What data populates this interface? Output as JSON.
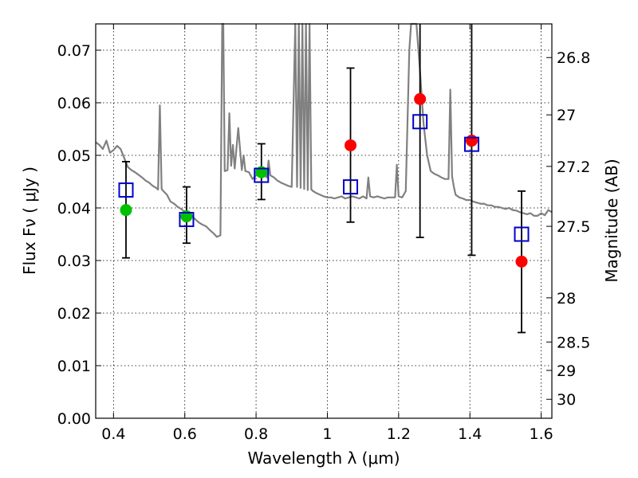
{
  "chart_data": {
    "type": "scatter",
    "xlabel": "Wavelength  λ (μm)",
    "ylabel": "Flux  Fν  ( μJy )",
    "ylabel_right": "Magnitude (AB)",
    "xlim": [
      0.35,
      1.63
    ],
    "ylim": [
      0.0,
      0.075
    ],
    "grid": true,
    "x_ticks": [
      0.4,
      0.6,
      0.8,
      1.0,
      1.2,
      1.4,
      1.6
    ],
    "x_tick_labels": [
      "0.4",
      "0.6",
      "0.8",
      "1",
      "1.2",
      "1.4",
      "1.6"
    ],
    "y_ticks": [
      0.0,
      0.01,
      0.02,
      0.03,
      0.04,
      0.05,
      0.06,
      0.07
    ],
    "y_tick_labels": [
      "0.00",
      "0.01",
      "0.02",
      "0.03",
      "0.04",
      "0.05",
      "0.06",
      "0.07"
    ],
    "right_ticks": [
      {
        "flux": 0.0686,
        "label": "26.8"
      },
      {
        "flux": 0.0577,
        "label": "27"
      },
      {
        "flux": 0.0479,
        "label": "27.2"
      },
      {
        "flux": 0.0365,
        "label": "27.5"
      },
      {
        "flux": 0.0229,
        "label": "28"
      },
      {
        "flux": 0.0145,
        "label": "28.5"
      },
      {
        "flux": 0.0091,
        "label": "29"
      },
      {
        "flux": 0.0036,
        "label": "30"
      }
    ],
    "series": [
      {
        "style": "spectrum",
        "color": "#808080",
        "x": [
          0.35,
          0.36,
          0.37,
          0.38,
          0.39,
          0.4,
          0.41,
          0.42,
          0.43,
          0.44,
          0.45,
          0.46,
          0.47,
          0.48,
          0.49,
          0.5,
          0.51,
          0.52,
          0.525,
          0.53,
          0.535,
          0.54,
          0.55,
          0.56,
          0.57,
          0.58,
          0.59,
          0.6,
          0.61,
          0.62,
          0.63,
          0.64,
          0.65,
          0.66,
          0.67,
          0.68,
          0.69,
          0.7,
          0.705,
          0.708,
          0.712,
          0.72,
          0.725,
          0.73,
          0.735,
          0.74,
          0.75,
          0.76,
          0.765,
          0.77,
          0.78,
          0.79,
          0.8,
          0.81,
          0.82,
          0.83,
          0.835,
          0.84,
          0.85,
          0.86,
          0.87,
          0.88,
          0.89,
          0.9,
          0.91,
          0.915,
          0.92,
          0.925,
          0.93,
          0.935,
          0.94,
          0.945,
          0.95,
          0.955,
          0.96,
          0.97,
          0.98,
          0.99,
          1.0,
          1.01,
          1.02,
          1.03,
          1.04,
          1.05,
          1.06,
          1.07,
          1.08,
          1.09,
          1.1,
          1.11,
          1.115,
          1.12,
          1.13,
          1.14,
          1.15,
          1.16,
          1.17,
          1.18,
          1.19,
          1.195,
          1.2,
          1.21,
          1.22,
          1.23,
          1.235,
          1.24,
          1.245,
          1.25,
          1.26,
          1.27,
          1.28,
          1.29,
          1.3,
          1.31,
          1.32,
          1.33,
          1.34,
          1.345,
          1.35,
          1.355,
          1.36,
          1.37,
          1.38,
          1.39,
          1.4,
          1.41,
          1.42,
          1.43,
          1.44,
          1.45,
          1.46,
          1.47,
          1.48,
          1.49,
          1.5,
          1.51,
          1.52,
          1.53,
          1.54,
          1.55,
          1.56,
          1.57,
          1.58,
          1.59,
          1.6,
          1.61,
          1.62,
          1.63
        ],
        "y": [
          0.0525,
          0.052,
          0.0512,
          0.0528,
          0.0505,
          0.051,
          0.0518,
          0.0512,
          0.0495,
          0.0478,
          0.0472,
          0.0468,
          0.0463,
          0.0458,
          0.0452,
          0.0448,
          0.0442,
          0.0438,
          0.0435,
          0.0595,
          0.0436,
          0.0432,
          0.0425,
          0.0412,
          0.0408,
          0.0402,
          0.0398,
          0.0392,
          0.039,
          0.0385,
          0.0378,
          0.0372,
          0.0368,
          0.0365,
          0.0358,
          0.0352,
          0.0345,
          0.0348,
          0.076,
          0.076,
          0.047,
          0.0472,
          0.058,
          0.048,
          0.052,
          0.0475,
          0.0552,
          0.0472,
          0.05,
          0.047,
          0.0468,
          0.0455,
          0.0462,
          0.0468,
          0.0465,
          0.0458,
          0.049,
          0.0462,
          0.0458,
          0.0452,
          0.0448,
          0.0445,
          0.0442,
          0.044,
          0.076,
          0.044,
          0.076,
          0.0438,
          0.076,
          0.0436,
          0.076,
          0.0434,
          0.076,
          0.0435,
          0.0432,
          0.0428,
          0.0425,
          0.0422,
          0.042,
          0.042,
          0.0418,
          0.042,
          0.0422,
          0.0418,
          0.042,
          0.0422,
          0.042,
          0.0418,
          0.0422,
          0.0418,
          0.0458,
          0.0422,
          0.042,
          0.0422,
          0.042,
          0.0418,
          0.042,
          0.042,
          0.042,
          0.0482,
          0.0422,
          0.042,
          0.0432,
          0.07,
          0.076,
          0.076,
          0.076,
          0.076,
          0.066,
          0.056,
          0.05,
          0.047,
          0.0465,
          0.0462,
          0.0458,
          0.0455,
          0.0455,
          0.0625,
          0.046,
          0.044,
          0.0425,
          0.042,
          0.0418,
          0.0415,
          0.0415,
          0.0412,
          0.041,
          0.0408,
          0.0408,
          0.0405,
          0.0405,
          0.0402,
          0.0402,
          0.04,
          0.0398,
          0.04,
          0.0396,
          0.0395,
          0.0392,
          0.039,
          0.0388,
          0.039,
          0.0385,
          0.0385,
          0.039,
          0.0386,
          0.0396,
          0.0392
        ]
      },
      {
        "name": "observed_green",
        "marker": "circle",
        "color": "#00c000",
        "x": [
          0.435,
          0.605,
          0.815
        ],
        "y": [
          0.0396,
          0.0384,
          0.0468
        ]
      },
      {
        "name": "observed_red",
        "marker": "circle",
        "color": "#ff0000",
        "x": [
          1.065,
          1.26,
          1.405,
          1.545
        ],
        "y": [
          0.0519,
          0.0607,
          0.0528,
          0.0298
        ]
      },
      {
        "name": "model_points",
        "marker": "square",
        "color": "#0000cc",
        "x": [
          0.435,
          0.605,
          0.815,
          1.065,
          1.26,
          1.405,
          1.545
        ],
        "y": [
          0.0434,
          0.0378,
          0.0462,
          0.044,
          0.0564,
          0.0521,
          0.035
        ],
        "err_low": [
          0.0305,
          0.0333,
          0.0416,
          0.0373,
          0.0344,
          0.031,
          0.0163
        ],
        "err_high": [
          0.0488,
          0.044,
          0.0522,
          0.0666,
          0.076,
          0.076,
          0.0432
        ]
      }
    ]
  }
}
